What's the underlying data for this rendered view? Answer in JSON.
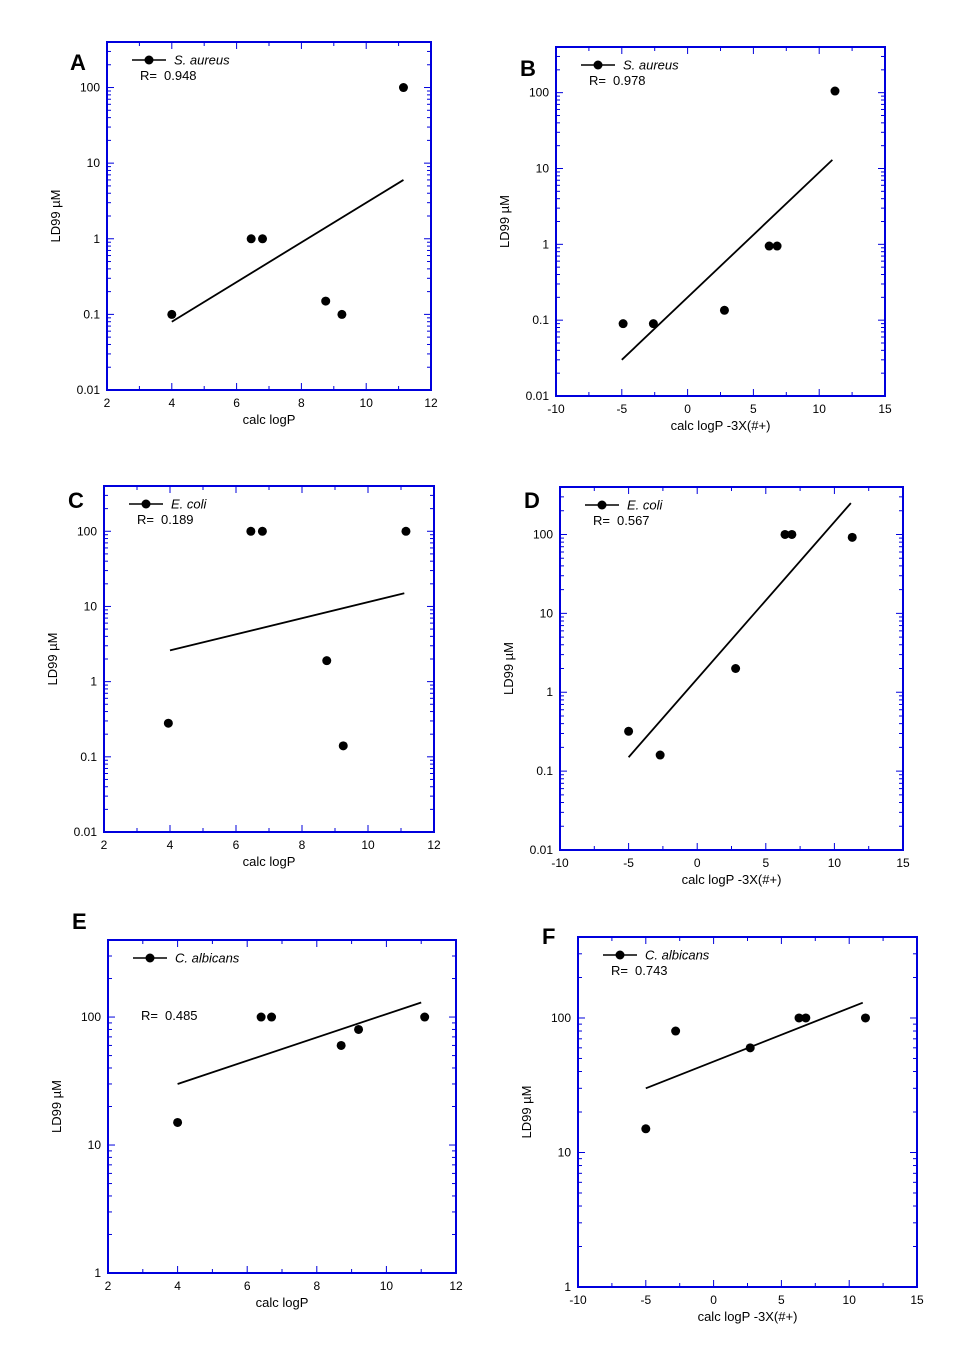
{
  "chart_data": [
    {
      "id": "A",
      "panel_label": "A",
      "type": "scatter",
      "xlabel": "calc logP",
      "ylabel": "LD99 µM",
      "xscale": "linear",
      "yscale": "log",
      "xlim": [
        2,
        12
      ],
      "ylim": [
        0.01,
        400
      ],
      "xticks": [
        2,
        4,
        6,
        8,
        10,
        12
      ],
      "yticks": [
        0.01,
        0.1,
        1,
        10,
        100
      ],
      "ytick_labels": [
        "0.01",
        "0.1",
        "1",
        "10",
        "100"
      ],
      "legend": {
        "label": "S. aureus",
        "r_label": "R=",
        "r_value": "0.948",
        "placement": "top-left"
      },
      "points": [
        {
          "x": 4.0,
          "y": 0.1
        },
        {
          "x": 6.45,
          "y": 1.0
        },
        {
          "x": 6.8,
          "y": 1.0
        },
        {
          "x": 8.75,
          "y": 0.15
        },
        {
          "x": 9.25,
          "y": 0.1
        },
        {
          "x": 11.15,
          "y": 100
        }
      ],
      "fit_line": [
        {
          "x": 4.0,
          "y": 0.08
        },
        {
          "x": 11.15,
          "y": 6
        }
      ]
    },
    {
      "id": "B",
      "panel_label": "B",
      "type": "scatter",
      "xlabel": "calc logP -3X(#+)",
      "ylabel": "LD99 µM",
      "xscale": "linear",
      "yscale": "log",
      "xlim": [
        -10,
        15
      ],
      "ylim": [
        0.01,
        400
      ],
      "xticks": [
        -10,
        -5,
        0,
        5,
        10,
        15
      ],
      "yticks": [
        0.01,
        0.1,
        1,
        10,
        100
      ],
      "ytick_labels": [
        "0.01",
        "0.1",
        "1",
        "10",
        "100"
      ],
      "legend": {
        "label": "S. aureus",
        "r_label": "R=",
        "r_value": "0.978",
        "placement": "top-left"
      },
      "points": [
        {
          "x": -4.9,
          "y": 0.09
        },
        {
          "x": -2.6,
          "y": 0.09
        },
        {
          "x": 2.8,
          "y": 0.135
        },
        {
          "x": 6.2,
          "y": 0.95
        },
        {
          "x": 6.8,
          "y": 0.95
        },
        {
          "x": 11.2,
          "y": 105
        }
      ],
      "fit_line": [
        {
          "x": -5.0,
          "y": 0.03
        },
        {
          "x": 11.0,
          "y": 13
        }
      ]
    },
    {
      "id": "C",
      "panel_label": "C",
      "type": "scatter",
      "xlabel": "calc logP",
      "ylabel": "LD99 µM",
      "xscale": "linear",
      "yscale": "log",
      "xlim": [
        2,
        12
      ],
      "ylim": [
        0.01,
        400
      ],
      "xticks": [
        2,
        4,
        6,
        8,
        10,
        12
      ],
      "yticks": [
        0.01,
        0.1,
        1,
        10,
        100
      ],
      "ytick_labels": [
        "0.01",
        "0.1",
        "1",
        "10",
        "100"
      ],
      "legend": {
        "label": "E. coli",
        "r_label": "R=",
        "r_value": "0.189",
        "placement": "top-left"
      },
      "points": [
        {
          "x": 3.95,
          "y": 0.28
        },
        {
          "x": 6.45,
          "y": 100
        },
        {
          "x": 6.8,
          "y": 100
        },
        {
          "x": 8.75,
          "y": 1.9
        },
        {
          "x": 9.25,
          "y": 0.14
        },
        {
          "x": 11.15,
          "y": 100
        }
      ],
      "fit_line": [
        {
          "x": 4.0,
          "y": 2.6
        },
        {
          "x": 11.1,
          "y": 15
        }
      ]
    },
    {
      "id": "D",
      "panel_label": "D",
      "type": "scatter",
      "xlabel": "calc logP -3X(#+)",
      "ylabel": "LD99 µM",
      "xscale": "linear",
      "yscale": "log",
      "xlim": [
        -10,
        15
      ],
      "ylim": [
        0.01,
        400
      ],
      "xticks": [
        -10,
        -5,
        0,
        5,
        10,
        15
      ],
      "yticks": [
        0.01,
        0.1,
        1,
        10,
        100
      ],
      "ytick_labels": [
        "0.01",
        "0.1",
        "1",
        "10",
        "100"
      ],
      "legend": {
        "label": "E. coli",
        "r_label": "R=",
        "r_value": "0.567",
        "placement": "top-left"
      },
      "points": [
        {
          "x": -5.0,
          "y": 0.32
        },
        {
          "x": -2.7,
          "y": 0.16
        },
        {
          "x": 2.8,
          "y": 2.0
        },
        {
          "x": 6.4,
          "y": 100
        },
        {
          "x": 6.9,
          "y": 100
        },
        {
          "x": 11.3,
          "y": 92
        }
      ],
      "fit_line": [
        {
          "x": -5.0,
          "y": 0.15
        },
        {
          "x": 11.2,
          "y": 250
        }
      ]
    },
    {
      "id": "E",
      "panel_label": "E",
      "type": "scatter",
      "xlabel": "calc logP",
      "ylabel": "LD99 µM",
      "xscale": "linear",
      "yscale": "log",
      "xlim": [
        2,
        12
      ],
      "ylim": [
        1,
        400
      ],
      "xticks": [
        2,
        4,
        6,
        8,
        10,
        12
      ],
      "yticks": [
        1,
        10,
        100
      ],
      "ytick_labels": [
        "1",
        "10",
        "100"
      ],
      "legend": {
        "label": "C. albicans",
        "r_label": "R=",
        "r_value": "0.485",
        "placement": "top-left"
      },
      "points": [
        {
          "x": 4.0,
          "y": 15
        },
        {
          "x": 6.4,
          "y": 100
        },
        {
          "x": 6.7,
          "y": 100
        },
        {
          "x": 8.7,
          "y": 60
        },
        {
          "x": 9.2,
          "y": 80
        },
        {
          "x": 11.1,
          "y": 100
        }
      ],
      "fit_line": [
        {
          "x": 4.0,
          "y": 30
        },
        {
          "x": 11.0,
          "y": 130
        }
      ]
    },
    {
      "id": "F",
      "panel_label": "F",
      "type": "scatter",
      "xlabel": "calc logP -3X(#+)",
      "ylabel": "LD99 µM",
      "xscale": "linear",
      "yscale": "log",
      "xlim": [
        -10,
        15
      ],
      "ylim": [
        1,
        400
      ],
      "xticks": [
        -10,
        -5,
        0,
        5,
        10,
        15
      ],
      "yticks": [
        1,
        10,
        100
      ],
      "ytick_labels": [
        "1",
        "10",
        "100"
      ],
      "legend": {
        "label": "C. albicans",
        "r_label": "R=",
        "r_value": "0.743",
        "placement": "top-left"
      },
      "points": [
        {
          "x": -5.0,
          "y": 15
        },
        {
          "x": -2.8,
          "y": 80
        },
        {
          "x": 2.7,
          "y": 60
        },
        {
          "x": 6.3,
          "y": 100
        },
        {
          "x": 6.8,
          "y": 100
        },
        {
          "x": 11.2,
          "y": 100
        }
      ],
      "fit_line": [
        {
          "x": -5.0,
          "y": 30
        },
        {
          "x": 11.0,
          "y": 130
        }
      ]
    }
  ],
  "colors": {
    "frame": "#0000dd",
    "ink": "#000000",
    "background": "#ffffff"
  }
}
